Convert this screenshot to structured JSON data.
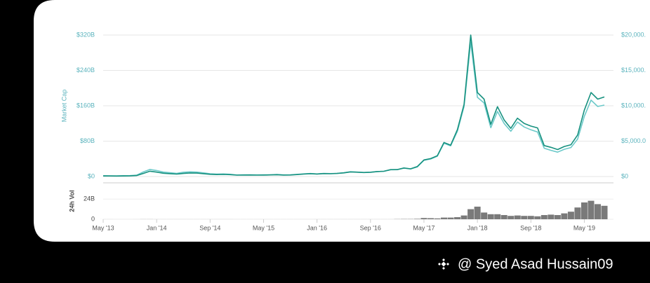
{
  "chart_data": [
    {
      "type": "line",
      "ylabel": "Market Cap",
      "x": [
        "2013-05",
        "2013-06",
        "2013-07",
        "2013-08",
        "2013-09",
        "2013-10",
        "2013-11",
        "2013-12",
        "2014-01",
        "2014-02",
        "2014-03",
        "2014-04",
        "2014-05",
        "2014-06",
        "2014-07",
        "2014-08",
        "2014-09",
        "2014-10",
        "2014-11",
        "2014-12",
        "2015-01",
        "2015-02",
        "2015-03",
        "2015-04",
        "2015-05",
        "2015-06",
        "2015-07",
        "2015-08",
        "2015-09",
        "2015-10",
        "2015-11",
        "2015-12",
        "2016-01",
        "2016-02",
        "2016-03",
        "2016-04",
        "2016-05",
        "2016-06",
        "2016-07",
        "2016-08",
        "2016-09",
        "2016-10",
        "2016-11",
        "2016-12",
        "2017-01",
        "2017-02",
        "2017-03",
        "2017-04",
        "2017-05",
        "2017-06",
        "2017-07",
        "2017-08",
        "2017-09",
        "2017-10",
        "2017-11",
        "2017-12",
        "2018-01",
        "2018-02",
        "2018-03",
        "2018-04",
        "2018-05",
        "2018-06",
        "2018-07",
        "2018-08",
        "2018-09",
        "2018-10",
        "2018-11",
        "2018-12",
        "2019-01",
        "2019-02",
        "2019-03",
        "2019-04",
        "2019-05",
        "2019-06",
        "2019-07",
        "2019-08"
      ],
      "series": [
        {
          "color": "#6cc9c9",
          "axis": "y2",
          "values": [
            120,
            100,
            95,
            120,
            130,
            190,
            640,
            1000,
            850,
            620,
            530,
            450,
            600,
            660,
            620,
            510,
            390,
            340,
            370,
            320,
            220,
            250,
            250,
            230,
            235,
            250,
            285,
            230,
            235,
            310,
            380,
            430,
            370,
            435,
            415,
            450,
            530,
            670,
            620,
            575,
            610,
            700,
            740,
            960,
            970,
            1190,
            1070,
            1350,
            2300,
            2480,
            2870,
            4700,
            4340,
            6400,
            9900,
            19000,
            11200,
            10400,
            6900,
            9200,
            7500,
            6400,
            7700,
            7000,
            6600,
            6300,
            4000,
            3700,
            3450,
            3850,
            4100,
            5300,
            8500,
            10800,
            9900,
            10100
          ]
        },
        {
          "color": "#16917f",
          "values": [
            1.3,
            1.2,
            1.1,
            1.3,
            1.5,
            2.2,
            7,
            12,
            10,
            7.5,
            6.5,
            5.5,
            7,
            8,
            7.8,
            6.5,
            5,
            4.5,
            4.8,
            4.3,
            3.2,
            3.3,
            3.5,
            3.2,
            3.3,
            3.6,
            4.1,
            3.4,
            3.5,
            4.5,
            5.5,
            6.5,
            5.7,
            6.6,
            6.3,
            6.9,
            8.2,
            10.5,
            9.8,
            9.1,
            9.7,
            11.2,
            11.9,
            15.5,
            15.7,
            19.4,
            17.4,
            22.5,
            37.5,
            40.5,
            47,
            77,
            71,
            106,
            163,
            320,
            190,
            175,
            118,
            158,
            128,
            109,
            132,
            120,
            114,
            110,
            70,
            66,
            61,
            68,
            72,
            94,
            150,
            190,
            175,
            180
          ]
        }
      ],
      "ylim": [
        0,
        320
      ],
      "yticks": [
        {
          "value": 0,
          "label": "$0"
        },
        {
          "value": 80,
          "label": "$80B"
        },
        {
          "value": 160,
          "label": "$160B"
        },
        {
          "value": 240,
          "label": "$240B"
        },
        {
          "value": 320,
          "label": "$320B"
        }
      ],
      "y2lim": [
        0,
        20000
      ],
      "y2ticks": [
        {
          "value": 0,
          "label": "$0"
        },
        {
          "value": 5000,
          "label": "$5,000.0"
        },
        {
          "value": 10000,
          "label": "$10,000."
        },
        {
          "value": 15000,
          "label": "$15,000."
        },
        {
          "value": 20000,
          "label": "$20,000."
        }
      ],
      "grid": true
    },
    {
      "type": "bar",
      "ylabel": "24h Vol",
      "color": "#7a7a7a",
      "x": [
        "2013-05",
        "2013-06",
        "2013-07",
        "2013-08",
        "2013-09",
        "2013-10",
        "2013-11",
        "2013-12",
        "2014-01",
        "2014-02",
        "2014-03",
        "2014-04",
        "2014-05",
        "2014-06",
        "2014-07",
        "2014-08",
        "2014-09",
        "2014-10",
        "2014-11",
        "2014-12",
        "2015-01",
        "2015-02",
        "2015-03",
        "2015-04",
        "2015-05",
        "2015-06",
        "2015-07",
        "2015-08",
        "2015-09",
        "2015-10",
        "2015-11",
        "2015-12",
        "2016-01",
        "2016-02",
        "2016-03",
        "2016-04",
        "2016-05",
        "2016-06",
        "2016-07",
        "2016-08",
        "2016-09",
        "2016-10",
        "2016-11",
        "2016-12",
        "2017-01",
        "2017-02",
        "2017-03",
        "2017-04",
        "2017-05",
        "2017-06",
        "2017-07",
        "2017-08",
        "2017-09",
        "2017-10",
        "2017-11",
        "2017-12",
        "2018-01",
        "2018-02",
        "2018-03",
        "2018-04",
        "2018-05",
        "2018-06",
        "2018-07",
        "2018-08",
        "2018-09",
        "2018-10",
        "2018-11",
        "2018-12",
        "2019-01",
        "2019-02",
        "2019-03",
        "2019-04",
        "2019-05",
        "2019-06",
        "2019-07",
        "2019-08"
      ],
      "values": [
        0.03,
        0.03,
        0.02,
        0.02,
        0.02,
        0.03,
        0.1,
        0.1,
        0.05,
        0.05,
        0.05,
        0.05,
        0.05,
        0.05,
        0.05,
        0.05,
        0.05,
        0.05,
        0.05,
        0.05,
        0.03,
        0.03,
        0.03,
        0.03,
        0.03,
        0.03,
        0.03,
        0.03,
        0.03,
        0.03,
        0.03,
        0.03,
        0.05,
        0.05,
        0.05,
        0.05,
        0.05,
        0.05,
        0.05,
        0.05,
        0.05,
        0.05,
        0.05,
        0.05,
        0.2,
        0.3,
        0.3,
        0.5,
        1.5,
        1.3,
        1,
        2,
        2,
        2.5,
        4.5,
        12,
        15,
        8,
        6,
        6,
        5,
        4,
        4.5,
        4,
        4,
        3.5,
        5,
        5.5,
        5,
        7,
        9,
        14,
        20,
        22,
        18,
        16
      ],
      "ylim": [
        0,
        40
      ],
      "yticks": [
        0,
        {
          "value": 24,
          "label": "24B"
        }
      ],
      "xticks": [
        {
          "value": "2013-05",
          "label": "May '13"
        },
        {
          "value": "2014-01",
          "label": "Jan '14"
        },
        {
          "value": "2014-09",
          "label": "Sep '14"
        },
        {
          "value": "2015-05",
          "label": "May '15"
        },
        {
          "value": "2016-01",
          "label": "Jan '16"
        },
        {
          "value": "2016-09",
          "label": "Sep '16"
        },
        {
          "value": "2017-05",
          "label": "May '17"
        },
        {
          "value": "2018-01",
          "label": "Jan '18"
        },
        {
          "value": "2018-09",
          "label": "Sep '18"
        },
        {
          "value": "2019-05",
          "label": "May '19"
        }
      ]
    }
  ],
  "watermark": "@ Syed Asad Hussain09"
}
